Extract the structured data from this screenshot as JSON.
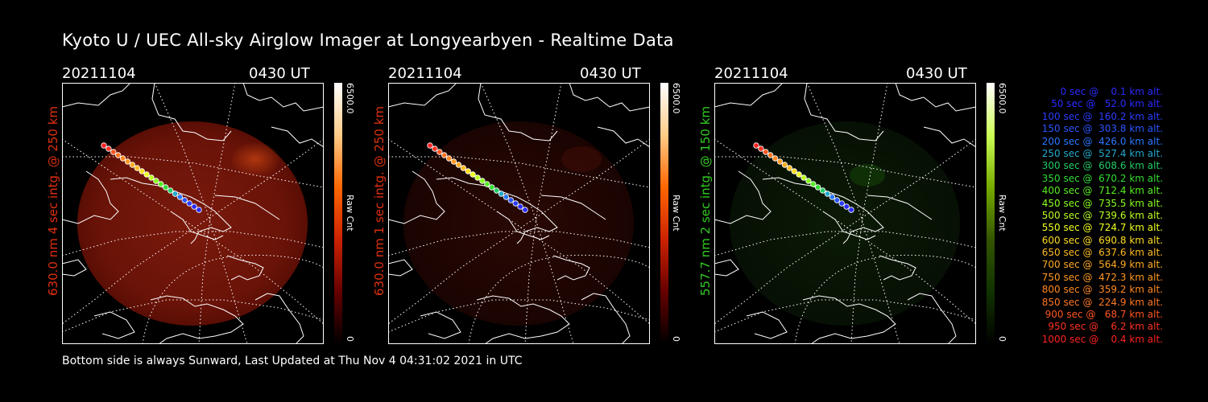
{
  "title": "Kyoto U / UEC All-sky Airglow Imager at Longyearbyen - Realtime Data",
  "panels": [
    {
      "date": "20211104",
      "time": "0430 UT",
      "ylabel": "630.0 nm  4 sec intg. @ 250 km",
      "ylabel_color": "#e03010",
      "cbar_max": "6500.0",
      "cbar_min": "0",
      "cbar_label": "Raw Cnt",
      "glow": "red"
    },
    {
      "date": "20211104",
      "time": "0430 UT",
      "ylabel": "630.0 nm  1 sec intg. @ 250 km",
      "ylabel_color": "#e03010",
      "cbar_max": "6500.0",
      "cbar_min": "0",
      "cbar_label": "Raw Cnt",
      "glow": "faint"
    },
    {
      "date": "20211104",
      "time": "0430 UT",
      "ylabel": "557.7 nm  2 sec intg. @ 150 km",
      "ylabel_color": "#33cc22",
      "cbar_max": "6500.0",
      "cbar_min": "0",
      "cbar_label": "Raw Cnt",
      "glow": "green"
    }
  ],
  "footer": "Bottom side is always Sunward, Last Updated at Thu Nov  4 04:31:02 2021 in UTC",
  "legend": [
    {
      "text": "   0 sec @    0.1 km alt.",
      "color": "#2a2aff"
    },
    {
      "text": "  50 sec @   52.0 km alt.",
      "color": "#2a2aff"
    },
    {
      "text": " 100 sec @  160.2 km alt.",
      "color": "#2a3cff"
    },
    {
      "text": " 150 sec @  303.8 km alt.",
      "color": "#2a55ff"
    },
    {
      "text": " 200 sec @  426.0 km alt.",
      "color": "#2a77ff"
    },
    {
      "text": " 250 sec @  527.4 km alt.",
      "color": "#22aacc"
    },
    {
      "text": " 300 sec @  608.6 km alt.",
      "color": "#22cc66"
    },
    {
      "text": " 350 sec @  670.2 km alt.",
      "color": "#33dd33"
    },
    {
      "text": " 400 sec @  712.4 km alt.",
      "color": "#55ee22"
    },
    {
      "text": " 450 sec @  735.5 km alt.",
      "color": "#88ff22"
    },
    {
      "text": " 500 sec @  739.6 km alt.",
      "color": "#bbff22"
    },
    {
      "text": " 550 sec @  724.7 km alt.",
      "color": "#eeff22"
    },
    {
      "text": " 600 sec @  690.8 km alt.",
      "color": "#ffdd22"
    },
    {
      "text": " 650 sec @  637.6 km alt.",
      "color": "#ffbb22"
    },
    {
      "text": " 700 sec @  564.9 km alt.",
      "color": "#ffaa22"
    },
    {
      "text": " 750 sec @  472.3 km alt.",
      "color": "#ff9922"
    },
    {
      "text": " 800 sec @  359.2 km alt.",
      "color": "#ff8822"
    },
    {
      "text": " 850 sec @  224.9 km alt.",
      "color": "#ff7722"
    },
    {
      "text": " 900 sec @   68.7 km alt.",
      "color": "#ff5522"
    },
    {
      "text": " 950 sec @    6.2 km alt.",
      "color": "#ff3322"
    },
    {
      "text": "1000 sec @    0.4 km alt.",
      "color": "#ff2222"
    }
  ]
}
